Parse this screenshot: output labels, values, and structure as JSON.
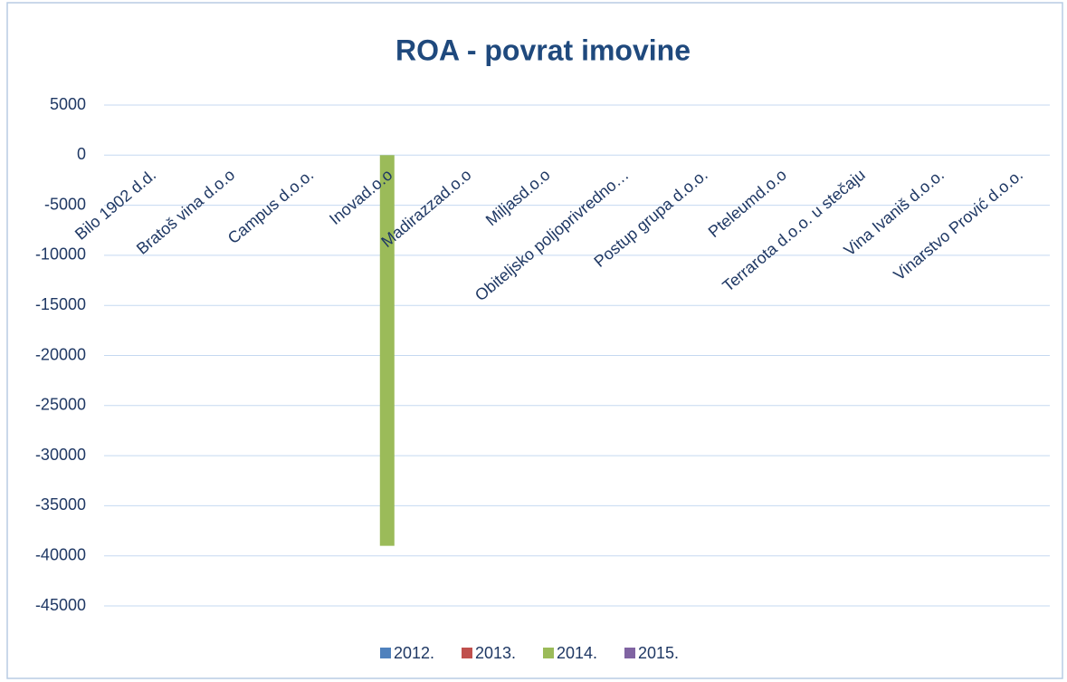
{
  "chart_data": {
    "type": "bar",
    "title": "ROA - povrat imovine",
    "categories": [
      "Bilo 1902 d.d.",
      "Bratoš vina d.o.o",
      "Campus d.o.o.",
      "Inovad.o.o",
      "Madirazzad.o.o",
      "Miljasd.o.o",
      "Obiteljsko poljoprivredno…",
      "Postup grupa d.o.o.",
      "Pteleumd.o.o",
      "Terrarota d.o.o. u stečaju",
      "Vina Ivaniš d.o.o.",
      "Vinarstvo Prović d.o.o."
    ],
    "series": [
      {
        "name": "2012.",
        "color": "#4f81bd",
        "values": [
          0,
          0,
          0,
          0,
          0,
          0,
          0,
          0,
          0,
          0,
          0,
          0
        ]
      },
      {
        "name": "2013.",
        "color": "#c0504d",
        "values": [
          0,
          0,
          0,
          0,
          0,
          0,
          0,
          0,
          0,
          0,
          0,
          0
        ]
      },
      {
        "name": "2014.",
        "color": "#9bbb59",
        "values": [
          0,
          0,
          0,
          -39000,
          0,
          0,
          0,
          0,
          0,
          0,
          0,
          0
        ]
      },
      {
        "name": "2015.",
        "color": "#8064a2",
        "values": [
          0,
          0,
          0,
          0,
          0,
          0,
          0,
          0,
          0,
          0,
          0,
          0
        ]
      }
    ],
    "ylim": [
      -45000,
      5000
    ],
    "yticks": [
      5000,
      0,
      -5000,
      -10000,
      -15000,
      -20000,
      -25000,
      -30000,
      -35000,
      -40000,
      -45000
    ],
    "grid": true
  }
}
